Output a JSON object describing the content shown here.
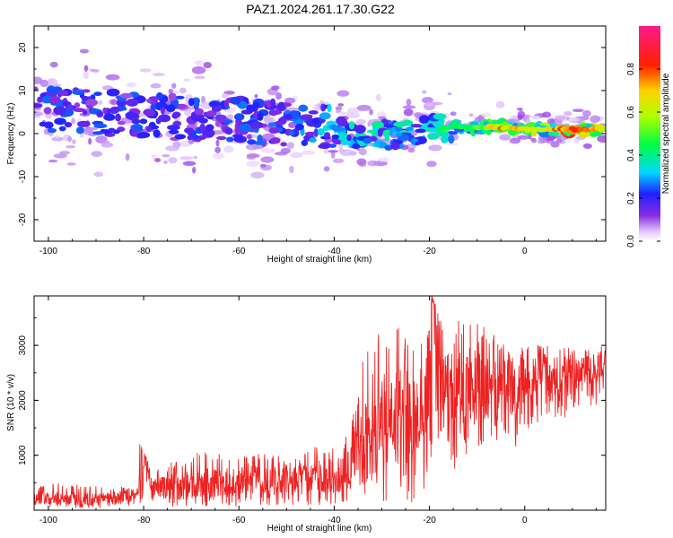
{
  "title": "PAZ1.2024.261.17.30.G22",
  "colors": {
    "snr_line": "#ee2222",
    "axis": "#000000",
    "background": "#ffffff"
  },
  "chart_data": [
    {
      "type": "heatmap",
      "xlabel": "Height of straight line (km)",
      "ylabel": "Frequency (Hz)",
      "xlim": [
        -103,
        17
      ],
      "ylim": [
        -25,
        25
      ],
      "x_ticks": [
        "-100",
        "-80",
        "-60",
        "-40",
        "-20",
        "0"
      ],
      "y_ticks": [
        "-20",
        "-10",
        "0",
        "10",
        "20"
      ],
      "colorbar": {
        "label": "Normalized spectral amplitude",
        "range": [
          0,
          1
        ],
        "ticks": [
          "0.0",
          "0.2",
          "0.4",
          "0.6",
          "0.8"
        ],
        "colormap": "rainbow (violet→blue→cyan→green→yellow→red→magenta)"
      },
      "ridge": [
        {
          "x": -103,
          "freq": 6,
          "amp": 0.3
        },
        {
          "x": -90,
          "freq": 5,
          "amp": 0.3
        },
        {
          "x": -80,
          "freq": 4,
          "amp": 0.28
        },
        {
          "x": -70,
          "freq": 3.5,
          "amp": 0.3
        },
        {
          "x": -60,
          "freq": 3,
          "amp": 0.3
        },
        {
          "x": -50,
          "freq": 2.5,
          "amp": 0.3
        },
        {
          "x": -40,
          "freq": 1.5,
          "amp": 0.4
        },
        {
          "x": -35,
          "freq": -0.5,
          "amp": 0.45
        },
        {
          "x": -30,
          "freq": -0.5,
          "amp": 0.45
        },
        {
          "x": -20,
          "freq": 1,
          "amp": 0.4
        },
        {
          "x": -15,
          "freq": 1.5,
          "amp": 0.5
        },
        {
          "x": -10,
          "freq": 1.5,
          "amp": 0.55
        },
        {
          "x": -5,
          "freq": 1.5,
          "amp": 0.85
        },
        {
          "x": 0,
          "freq": 1,
          "amp": 0.7
        },
        {
          "x": 5,
          "freq": 1,
          "amp": 0.75
        },
        {
          "x": 10,
          "freq": 1,
          "amp": 0.95
        },
        {
          "x": 17,
          "freq": 1,
          "amp": 0.7
        }
      ]
    },
    {
      "type": "line",
      "xlabel": "Height of straight line (km)",
      "ylabel": "SNR (10 * v/v)",
      "xlim": [
        -103,
        17
      ],
      "ylim": [
        0,
        3900
      ],
      "x_ticks": [
        "-100",
        "-80",
        "-60",
        "-40",
        "-20",
        "0"
      ],
      "y_ticks": [
        "1000",
        "2000",
        "3000"
      ],
      "series": [
        {
          "x": [
            -103,
            -98,
            -93,
            -88,
            -85,
            -81,
            -80.8,
            -78,
            -73,
            -68,
            -63,
            -58,
            -53,
            -48,
            -43,
            -38,
            -36,
            -34,
            -31,
            -29,
            -26,
            -23,
            -20,
            -19.5,
            -17,
            -14,
            -11,
            -8,
            -5,
            -2,
            0,
            3,
            6,
            9,
            12,
            15,
            17
          ],
          "y": [
            200,
            230,
            200,
            220,
            210,
            280,
            1150,
            380,
            430,
            480,
            500,
            540,
            560,
            560,
            600,
            650,
            850,
            1200,
            1500,
            1700,
            1800,
            1600,
            2500,
            3900,
            2200,
            2100,
            2300,
            2200,
            2500,
            2200,
            2300,
            2600,
            2200,
            2300,
            2500,
            2600,
            2800
          ],
          "upper": [
            420,
            500,
            450,
            420,
            420,
            430,
            1200,
            700,
            950,
            1100,
            1000,
            1050,
            1000,
            950,
            1200,
            1250,
            1800,
            2700,
            3300,
            3200,
            3500,
            3000,
            3400,
            3900,
            3350,
            3500,
            3450,
            3300,
            3100,
            3050,
            3000,
            3050,
            2950,
            2950,
            2900,
            2950,
            3100
          ],
          "lower": [
            60,
            60,
            40,
            40,
            40,
            60,
            100,
            60,
            60,
            60,
            60,
            60,
            80,
            80,
            100,
            100,
            120,
            150,
            100,
            150,
            120,
            150,
            200,
            1200,
            800,
            700,
            900,
            1200,
            1300,
            1000,
            1400,
            1600,
            1500,
            1600,
            1900,
            1900,
            2100
          ]
        }
      ]
    }
  ]
}
